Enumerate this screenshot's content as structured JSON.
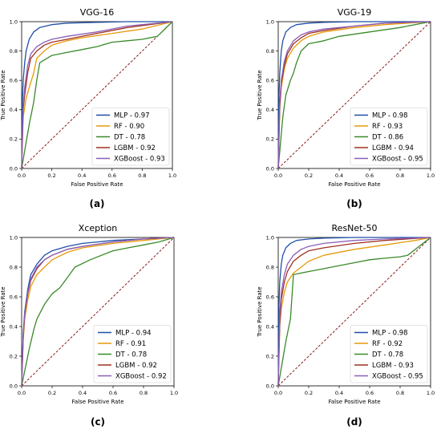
{
  "figure": {
    "legend_loc": "lower-right",
    "diagonal_color": "#8b1a1a",
    "series_colors": {
      "MLP": "#1f4fa8",
      "RF": "#e69a0c",
      "DT": "#3a8a2a",
      "LGBM": "#a03020",
      "XGBoost": "#8a5fb8"
    }
  },
  "chart_data": [
    {
      "type": "line",
      "title": "VGG-16",
      "caption": "(a)",
      "xlabel": "False Positive Rate",
      "ylabel": "True Positive Rate",
      "xlim": [
        0,
        1
      ],
      "ylim": [
        0,
        1
      ],
      "xticks": [
        "0.0",
        "0.2",
        "0.4",
        "0.6",
        "0.8",
        "1.0"
      ],
      "yticks": [
        "0.0",
        "0.2",
        "0.4",
        "0.6",
        "0.8",
        "1.0"
      ],
      "series": [
        {
          "name": "MLP",
          "legend": "MLP - 0.97",
          "x": [
            0,
            0.005,
            0.01,
            0.02,
            0.03,
            0.05,
            0.08,
            0.12,
            0.2,
            0.3,
            0.5,
            0.7,
            1.0
          ],
          "y": [
            0,
            0.45,
            0.6,
            0.72,
            0.8,
            0.88,
            0.93,
            0.96,
            0.98,
            0.99,
            0.995,
            1.0,
            1.0
          ]
        },
        {
          "name": "RF",
          "legend": "RF - 0.90",
          "x": [
            0,
            0.01,
            0.03,
            0.05,
            0.08,
            0.1,
            0.15,
            0.2,
            0.3,
            0.4,
            0.6,
            0.8,
            1.0
          ],
          "y": [
            0,
            0.35,
            0.48,
            0.55,
            0.65,
            0.75,
            0.8,
            0.84,
            0.87,
            0.89,
            0.92,
            0.95,
            1.0
          ]
        },
        {
          "name": "DT",
          "legend": "DT - 0.78",
          "x": [
            0,
            0.05,
            0.08,
            0.1,
            0.12,
            0.2,
            0.3,
            0.4,
            0.5,
            0.6,
            0.7,
            0.8,
            0.9,
            1.0
          ],
          "y": [
            0,
            0.3,
            0.45,
            0.6,
            0.72,
            0.77,
            0.79,
            0.81,
            0.83,
            0.86,
            0.87,
            0.88,
            0.9,
            1.0
          ]
        },
        {
          "name": "LGBM",
          "legend": "LGBM - 0.92",
          "x": [
            0,
            0.01,
            0.02,
            0.04,
            0.06,
            0.1,
            0.15,
            0.2,
            0.3,
            0.5,
            0.7,
            1.0
          ],
          "y": [
            0,
            0.4,
            0.5,
            0.65,
            0.75,
            0.8,
            0.84,
            0.86,
            0.88,
            0.92,
            0.96,
            1.0
          ]
        },
        {
          "name": "XGBoost",
          "legend": "XGBoost - 0.93",
          "x": [
            0,
            0.01,
            0.02,
            0.04,
            0.06,
            0.1,
            0.15,
            0.2,
            0.3,
            0.5,
            0.7,
            1.0
          ],
          "y": [
            0,
            0.42,
            0.55,
            0.7,
            0.78,
            0.83,
            0.86,
            0.88,
            0.9,
            0.93,
            0.97,
            1.0
          ]
        }
      ]
    },
    {
      "type": "line",
      "title": "VGG-19",
      "caption": "(b)",
      "xlabel": "False Positive Rate",
      "ylabel": "True Positive Rate",
      "xlim": [
        0,
        1
      ],
      "ylim": [
        0,
        1
      ],
      "xticks": [
        "0.0",
        "0.2",
        "0.4",
        "0.6",
        "0.8",
        "1.0"
      ],
      "yticks": [
        "0.0",
        "0.2",
        "0.4",
        "0.6",
        "0.8",
        "1.0"
      ],
      "series": [
        {
          "name": "MLP",
          "legend": "MLP - 0.98",
          "x": [
            0,
            0.005,
            0.01,
            0.02,
            0.03,
            0.05,
            0.08,
            0.12,
            0.2,
            0.3,
            0.5,
            1.0
          ],
          "y": [
            0,
            0.5,
            0.65,
            0.8,
            0.87,
            0.93,
            0.96,
            0.98,
            0.99,
            0.995,
            1.0,
            1.0
          ]
        },
        {
          "name": "RF",
          "legend": "RF - 0.93",
          "x": [
            0,
            0.01,
            0.02,
            0.04,
            0.06,
            0.1,
            0.15,
            0.2,
            0.3,
            0.5,
            0.7,
            1.0
          ],
          "y": [
            0,
            0.4,
            0.55,
            0.68,
            0.75,
            0.82,
            0.87,
            0.9,
            0.93,
            0.96,
            0.98,
            1.0
          ]
        },
        {
          "name": "DT",
          "legend": "DT - 0.86",
          "x": [
            0,
            0.03,
            0.05,
            0.08,
            0.1,
            0.12,
            0.15,
            0.2,
            0.3,
            0.4,
            0.6,
            0.8,
            1.0
          ],
          "y": [
            0,
            0.35,
            0.5,
            0.6,
            0.65,
            0.72,
            0.8,
            0.85,
            0.87,
            0.9,
            0.93,
            0.96,
            1.0
          ]
        },
        {
          "name": "LGBM",
          "legend": "LGBM - 0.94",
          "x": [
            0,
            0.01,
            0.02,
            0.04,
            0.06,
            0.1,
            0.15,
            0.2,
            0.3,
            0.5,
            0.7,
            1.0
          ],
          "y": [
            0,
            0.42,
            0.58,
            0.7,
            0.78,
            0.85,
            0.89,
            0.92,
            0.94,
            0.97,
            0.99,
            1.0
          ]
        },
        {
          "name": "XGBoost",
          "legend": "XGBoost - 0.95",
          "x": [
            0,
            0.01,
            0.02,
            0.04,
            0.06,
            0.1,
            0.15,
            0.2,
            0.3,
            0.5,
            0.7,
            1.0
          ],
          "y": [
            0,
            0.45,
            0.6,
            0.73,
            0.8,
            0.87,
            0.91,
            0.93,
            0.95,
            0.97,
            0.99,
            1.0
          ]
        }
      ]
    },
    {
      "type": "line",
      "title": "Xception",
      "caption": "(c)",
      "xlabel": "False Positive Rate",
      "ylabel": "True Positive Rate",
      "xlim": [
        0,
        1
      ],
      "ylim": [
        0,
        1
      ],
      "xticks": [
        "0.0",
        "0.2",
        "0.4",
        "0.6",
        "0.8",
        "1.0"
      ],
      "yticks": [
        "0.0",
        "0.2",
        "0.4",
        "0.6",
        "0.8",
        "1.0"
      ],
      "series": [
        {
          "name": "MLP",
          "legend": "MLP - 0.94",
          "x": [
            0,
            0.01,
            0.02,
            0.04,
            0.06,
            0.1,
            0.15,
            0.2,
            0.3,
            0.4,
            0.6,
            0.8,
            1.0
          ],
          "y": [
            0,
            0.35,
            0.5,
            0.65,
            0.75,
            0.82,
            0.88,
            0.91,
            0.94,
            0.96,
            0.98,
            0.99,
            1.0
          ]
        },
        {
          "name": "RF",
          "legend": "RF - 0.91",
          "x": [
            0,
            0.01,
            0.02,
            0.04,
            0.06,
            0.1,
            0.15,
            0.2,
            0.3,
            0.4,
            0.6,
            0.8,
            1.0
          ],
          "y": [
            0,
            0.3,
            0.45,
            0.58,
            0.67,
            0.75,
            0.8,
            0.85,
            0.9,
            0.93,
            0.96,
            0.98,
            1.0
          ]
        },
        {
          "name": "DT",
          "legend": "DT - 0.78",
          "x": [
            0,
            0.05,
            0.08,
            0.1,
            0.15,
            0.2,
            0.25,
            0.3,
            0.35,
            0.45,
            0.6,
            0.7,
            0.8,
            0.9,
            1.0
          ],
          "y": [
            0,
            0.25,
            0.38,
            0.45,
            0.55,
            0.62,
            0.66,
            0.73,
            0.8,
            0.85,
            0.91,
            0.93,
            0.95,
            0.97,
            1.0
          ]
        },
        {
          "name": "LGBM",
          "legend": "LGBM - 0.92",
          "x": [
            0,
            0.01,
            0.02,
            0.04,
            0.06,
            0.1,
            0.15,
            0.2,
            0.3,
            0.4,
            0.6,
            0.8,
            1.0
          ],
          "y": [
            0,
            0.32,
            0.48,
            0.62,
            0.71,
            0.79,
            0.85,
            0.88,
            0.92,
            0.94,
            0.97,
            0.99,
            1.0
          ]
        },
        {
          "name": "XGBoost",
          "legend": "XGBoost - 0.92",
          "x": [
            0,
            0.01,
            0.02,
            0.04,
            0.06,
            0.1,
            0.15,
            0.2,
            0.3,
            0.4,
            0.6,
            0.8,
            1.0
          ],
          "y": [
            0,
            0.33,
            0.49,
            0.63,
            0.72,
            0.8,
            0.85,
            0.88,
            0.92,
            0.94,
            0.97,
            0.99,
            1.0
          ]
        }
      ]
    },
    {
      "type": "line",
      "title": "ResNet-50",
      "caption": "(d)",
      "xlabel": "False Positive Rate",
      "ylabel": "True Positive Rate",
      "xlim": [
        0,
        1
      ],
      "ylim": [
        0,
        1
      ],
      "xticks": [
        "0.0",
        "0.2",
        "0.4",
        "0.6",
        "0.8",
        "1.0"
      ],
      "yticks": [
        "0.0",
        "0.2",
        "0.4",
        "0.6",
        "0.8",
        "1.0"
      ],
      "series": [
        {
          "name": "MLP",
          "legend": "MLP - 0.98",
          "x": [
            0,
            0.005,
            0.01,
            0.02,
            0.03,
            0.05,
            0.08,
            0.12,
            0.2,
            0.3,
            0.5,
            1.0
          ],
          "y": [
            0,
            0.55,
            0.7,
            0.82,
            0.88,
            0.93,
            0.96,
            0.98,
            0.99,
            0.995,
            1.0,
            1.0
          ]
        },
        {
          "name": "RF",
          "legend": "RF - 0.92",
          "x": [
            0,
            0.01,
            0.02,
            0.04,
            0.06,
            0.1,
            0.15,
            0.2,
            0.3,
            0.5,
            0.7,
            0.9,
            1.0
          ],
          "y": [
            0,
            0.4,
            0.52,
            0.63,
            0.7,
            0.76,
            0.8,
            0.84,
            0.88,
            0.92,
            0.95,
            0.98,
            1.0
          ]
        },
        {
          "name": "DT",
          "legend": "DT - 0.78",
          "x": [
            0,
            0.05,
            0.08,
            0.1,
            0.2,
            0.3,
            0.4,
            0.5,
            0.6,
            0.7,
            0.8,
            0.85,
            1.0
          ],
          "y": [
            0,
            0.3,
            0.45,
            0.75,
            0.77,
            0.79,
            0.81,
            0.83,
            0.85,
            0.86,
            0.87,
            0.88,
            1.0
          ]
        },
        {
          "name": "LGBM",
          "legend": "LGBM - 0.93",
          "x": [
            0,
            0.01,
            0.02,
            0.04,
            0.06,
            0.1,
            0.15,
            0.2,
            0.3,
            0.5,
            0.7,
            1.0
          ],
          "y": [
            0,
            0.42,
            0.58,
            0.7,
            0.77,
            0.84,
            0.88,
            0.91,
            0.93,
            0.96,
            0.98,
            1.0
          ]
        },
        {
          "name": "XGBoost",
          "legend": "XGBoost - 0.95",
          "x": [
            0,
            0.01,
            0.02,
            0.04,
            0.06,
            0.1,
            0.15,
            0.2,
            0.3,
            0.5,
            0.7,
            1.0
          ],
          "y": [
            0,
            0.48,
            0.63,
            0.75,
            0.82,
            0.88,
            0.92,
            0.94,
            0.96,
            0.98,
            0.99,
            1.0
          ]
        }
      ]
    }
  ]
}
